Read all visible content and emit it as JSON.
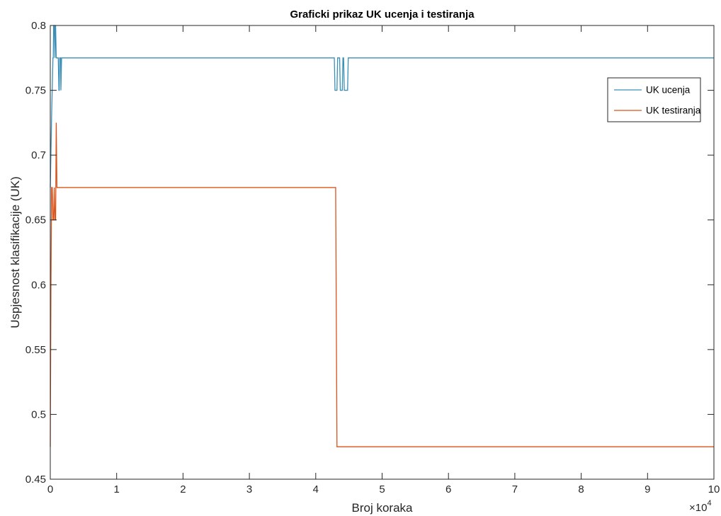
{
  "chart_data": {
    "type": "line",
    "title": "Graficki prikaz UK ucenja i testiranja",
    "xlabel": "Broj koraka",
    "ylabel": "Uspjesnost klasifikacije (UK)",
    "x_exponent": "×10",
    "x_exponent_power": "4",
    "xlim": [
      0,
      100000
    ],
    "ylim": [
      0.45,
      0.8
    ],
    "x_ticks": [
      0,
      10000,
      20000,
      30000,
      40000,
      50000,
      60000,
      70000,
      80000,
      90000,
      100000
    ],
    "x_tick_labels": [
      "0",
      "1",
      "2",
      "3",
      "4",
      "5",
      "6",
      "7",
      "8",
      "9",
      "10"
    ],
    "y_ticks": [
      0.45,
      0.5,
      0.55,
      0.6,
      0.65,
      0.7,
      0.75,
      0.8
    ],
    "y_tick_labels": [
      "0.45",
      "0.5",
      "0.55",
      "0.6",
      "0.65",
      "0.7",
      "0.75",
      "0.8"
    ],
    "grid": false,
    "legend_position": "top-right",
    "series": [
      {
        "name": "UK ucenja",
        "color": "#3a8fb7",
        "x": [
          0,
          200,
          400,
          450,
          500,
          600,
          700,
          750,
          800,
          900,
          1200,
          1300,
          1350,
          1400,
          1550,
          1600,
          1700,
          42800,
          42900,
          43000,
          43200,
          43300,
          43400,
          43500,
          43600,
          43700,
          44000,
          44100,
          44200,
          44300,
          44800,
          44900,
          45000,
          100000
        ],
        "y": [
          0.675,
          0.73,
          0.775,
          0.775,
          0.8,
          0.8,
          0.775,
          0.8,
          0.8,
          0.775,
          0.775,
          0.75,
          0.75,
          0.775,
          0.775,
          0.75,
          0.775,
          0.775,
          0.75,
          0.75,
          0.75,
          0.775,
          0.775,
          0.775,
          0.775,
          0.75,
          0.75,
          0.775,
          0.775,
          0.75,
          0.75,
          0.775,
          0.775,
          0.775
        ]
      },
      {
        "name": "UK testiranja",
        "color": "#d95319",
        "x": [
          0,
          100,
          200,
          300,
          400,
          500,
          600,
          700,
          800,
          900,
          1000,
          1100,
          1200,
          43000,
          43200,
          43500,
          100000
        ],
        "y": [
          0.475,
          0.6,
          0.675,
          0.675,
          0.65,
          0.65,
          0.675,
          0.65,
          0.65,
          0.725,
          0.675,
          0.675,
          0.675,
          0.675,
          0.475,
          0.475,
          0.475
        ]
      }
    ]
  }
}
